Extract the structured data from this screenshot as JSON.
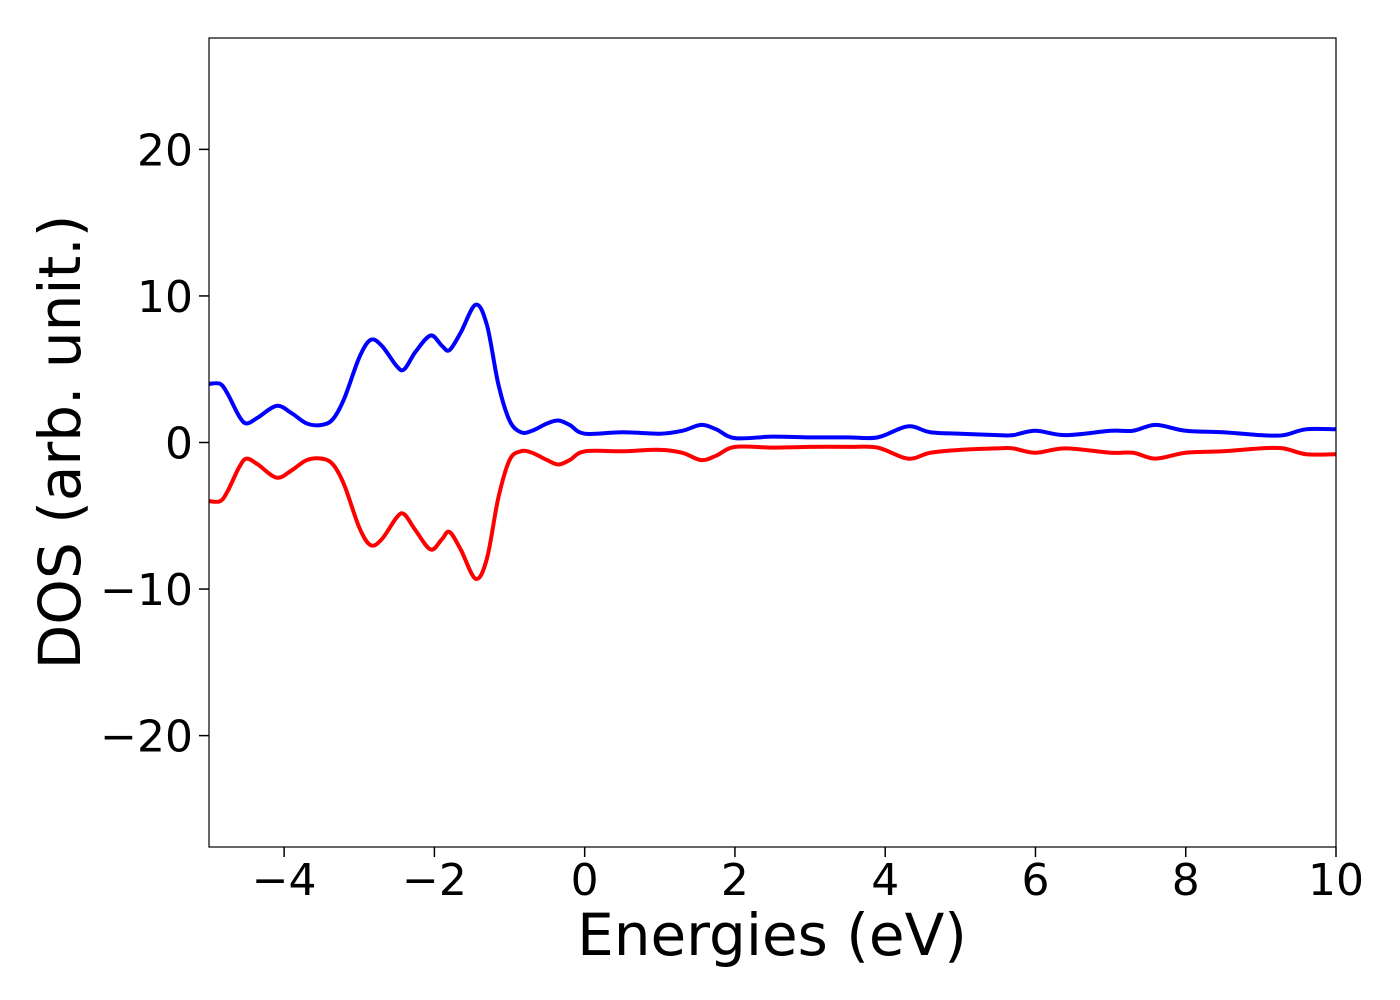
{
  "chart_data": {
    "type": "line",
    "x_label": "Energies (eV)",
    "y_label": "DOS (arb. unit.)",
    "x": [
      -5,
      -4.85,
      -4.75,
      -4.6,
      -4.5,
      -4.35,
      -4.1,
      -3.9,
      -3.7,
      -3.5,
      -3.35,
      -3.2,
      -3.0,
      -2.85,
      -2.7,
      -2.5,
      -2.4,
      -2.25,
      -2.05,
      -1.9,
      -1.8,
      -1.65,
      -1.45,
      -1.3,
      -1.15,
      -1.0,
      -0.85,
      -0.7,
      -0.5,
      -0.35,
      -0.2,
      0,
      0.5,
      1.0,
      1.3,
      1.55,
      1.75,
      2.0,
      2.5,
      3.0,
      3.5,
      3.9,
      4.3,
      4.6,
      5.0,
      5.5,
      5.7,
      6.0,
      6.4,
      7.0,
      7.3,
      7.6,
      8.0,
      8.5,
      9.0,
      9.3,
      9.6,
      10
    ],
    "series": [
      {
        "color": "#0000ff",
        "values": [
          4.0,
          4.0,
          3.3,
          1.8,
          1.3,
          1.7,
          2.5,
          2.0,
          1.3,
          1.2,
          1.6,
          3.0,
          5.8,
          7.0,
          6.6,
          5.2,
          5.0,
          6.2,
          7.3,
          6.6,
          6.3,
          7.5,
          9.4,
          8.0,
          4.0,
          1.5,
          0.7,
          0.8,
          1.3,
          1.5,
          1.2,
          0.6,
          0.7,
          0.6,
          0.8,
          1.2,
          0.9,
          0.3,
          0.4,
          0.35,
          0.35,
          0.35,
          1.1,
          0.7,
          0.6,
          0.5,
          0.5,
          0.8,
          0.5,
          0.8,
          0.8,
          1.2,
          0.8,
          0.7,
          0.5,
          0.5,
          0.9,
          0.9
        ]
      },
      {
        "color": "#ff0000",
        "values": [
          -4.0,
          -4.0,
          -3.3,
          -1.7,
          -1.1,
          -1.5,
          -2.4,
          -1.9,
          -1.2,
          -1.1,
          -1.5,
          -2.9,
          -5.8,
          -7.0,
          -6.6,
          -5.1,
          -4.9,
          -6.0,
          -7.3,
          -6.6,
          -6.1,
          -7.3,
          -9.3,
          -7.9,
          -3.8,
          -1.2,
          -0.6,
          -0.7,
          -1.2,
          -1.5,
          -1.2,
          -0.6,
          -0.6,
          -0.5,
          -0.7,
          -1.2,
          -0.9,
          -0.3,
          -0.35,
          -0.3,
          -0.3,
          -0.35,
          -1.1,
          -0.7,
          -0.5,
          -0.4,
          -0.4,
          -0.7,
          -0.4,
          -0.7,
          -0.7,
          -1.1,
          -0.7,
          -0.6,
          -0.4,
          -0.4,
          -0.8,
          -0.8
        ]
      }
    ],
    "xlim": [
      -5,
      10
    ],
    "ylim": [
      -27.6,
      27.6
    ],
    "xticks": [
      {
        "value": -4,
        "label": "−4"
      },
      {
        "value": -2,
        "label": "−2"
      },
      0,
      2,
      4,
      6,
      8,
      10
    ],
    "yticks": [
      {
        "value": -20,
        "label": "−20"
      },
      {
        "value": -10,
        "label": "−10"
      },
      0,
      10,
      20
    ],
    "grid": false
  }
}
